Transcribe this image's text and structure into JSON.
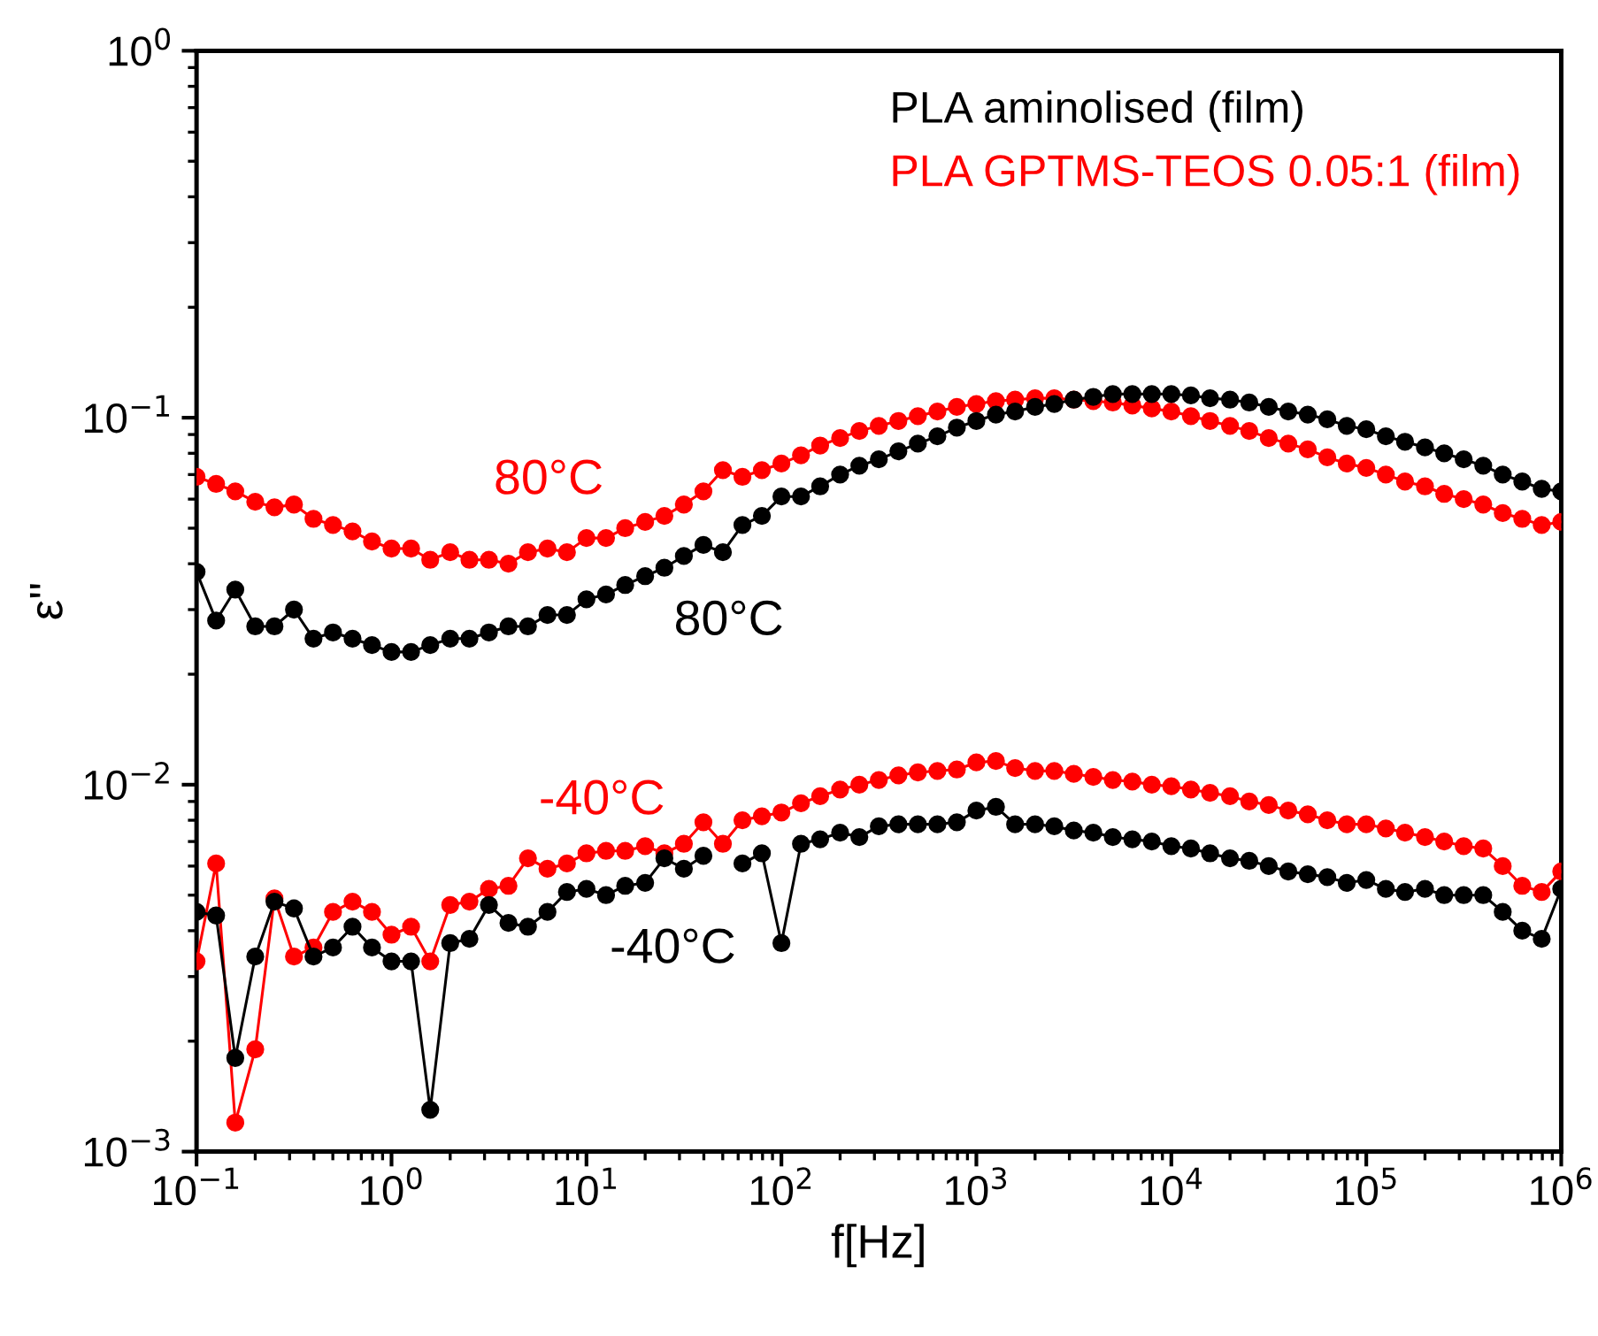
{
  "chart_data": {
    "type": "line",
    "xlabel": "f[Hz]",
    "ylabel": "ε''",
    "log": "xy",
    "marker": "circle",
    "line_style": "solid",
    "grid": false,
    "legend": "top right",
    "xlim": [
      0.1,
      1000000
    ],
    "ylim": [
      0.001,
      1
    ],
    "xticks": [
      {
        "value": 0.1,
        "label": "10$^{−1}$"
      },
      {
        "value": 1,
        "label": "10$^{0}$"
      },
      {
        "value": 10,
        "label": "10$^{1}$"
      },
      {
        "value": 100,
        "label": "10$^{2}$"
      },
      {
        "value": 1000,
        "label": "10$^{3}$"
      },
      {
        "value": 10000,
        "label": "10$^{4}$"
      },
      {
        "value": 100000,
        "label": "10$^{5}$"
      },
      {
        "value": 1000000,
        "label": "10$^{6}$"
      }
    ],
    "yticks": [
      {
        "value": 0.001,
        "label": "10$^{−3}$"
      },
      {
        "value": 0.01,
        "label": "10$^{−2}$"
      },
      {
        "value": 0.1,
        "label": "10$^{−1}$"
      },
      {
        "value": 1,
        "label": "10$^{0}$"
      }
    ],
    "x": [
      0.1,
      0.126,
      0.158,
      0.2,
      0.251,
      0.316,
      0.398,
      0.501,
      0.631,
      0.794,
      1,
      1.26,
      1.58,
      2,
      2.51,
      3.16,
      3.98,
      5.01,
      6.31,
      7.94,
      10,
      12.6,
      15.8,
      20,
      25.1,
      31.6,
      39.8,
      50.1,
      63.1,
      79.4,
      100,
      126,
      158,
      200,
      251,
      316,
      398,
      501,
      631,
      794,
      1000,
      1260,
      1580,
      2000,
      2510,
      3160,
      3980,
      5010,
      6310,
      7940,
      10000,
      12600,
      15800,
      20000,
      25100,
      31600,
      39800,
      50100,
      63100,
      79400,
      100000,
      126000,
      158000,
      200000,
      251000,
      316000,
      398000,
      501000,
      631000,
      794000,
      1000000
    ],
    "series": [
      {
        "name": "PLA aminolised (film)",
        "color": "#000000",
        "values": [
          0.038,
          0.028,
          0.034,
          0.027,
          0.027,
          0.03,
          0.025,
          0.026,
          0.025,
          0.024,
          0.023,
          0.023,
          0.024,
          0.025,
          0.025,
          0.026,
          0.027,
          0.027,
          0.029,
          0.029,
          0.032,
          0.033,
          0.035,
          0.037,
          0.039,
          0.042,
          0.045,
          0.043,
          0.051,
          0.054,
          0.061,
          0.061,
          0.065,
          0.07,
          0.074,
          0.077,
          0.081,
          0.085,
          0.089,
          0.094,
          0.098,
          0.102,
          0.104,
          0.107,
          0.109,
          0.112,
          0.114,
          0.116,
          0.116,
          0.116,
          0.116,
          0.115,
          0.113,
          0.112,
          0.11,
          0.107,
          0.104,
          0.102,
          0.099,
          0.095,
          0.093,
          0.089,
          0.086,
          0.083,
          0.08,
          0.077,
          0.074,
          0.07,
          0.067,
          0.064,
          0.063
        ]
      },
      {
        "name": "PLA GPTMS-TEOS 0.05:1 (film)",
        "color": "#ff0000",
        "values": [
          0.069,
          0.066,
          0.063,
          0.059,
          0.057,
          0.058,
          0.053,
          0.051,
          0.049,
          0.046,
          0.044,
          0.044,
          0.041,
          0.043,
          0.041,
          0.041,
          0.04,
          0.043,
          0.044,
          0.043,
          0.047,
          0.047,
          0.05,
          0.052,
          0.054,
          0.058,
          0.063,
          0.072,
          0.069,
          0.072,
          0.075,
          0.079,
          0.084,
          0.088,
          0.092,
          0.095,
          0.098,
          0.101,
          0.104,
          0.107,
          0.109,
          0.111,
          0.112,
          0.113,
          0.113,
          0.112,
          0.111,
          0.11,
          0.108,
          0.106,
          0.104,
          0.101,
          0.098,
          0.095,
          0.092,
          0.088,
          0.085,
          0.082,
          0.078,
          0.075,
          0.073,
          0.07,
          0.067,
          0.065,
          0.062,
          0.06,
          0.058,
          0.055,
          0.053,
          0.051,
          0.052
        ]
      },
      {
        "color": "#000000",
        "values": [
          0.0045,
          0.0044,
          0.0018,
          0.0034,
          0.0048,
          0.0046,
          0.0034,
          0.0036,
          0.0041,
          0.0036,
          0.0033,
          0.0033,
          0.0013,
          0.0037,
          0.0038,
          0.0047,
          0.0042,
          0.0041,
          0.0045,
          0.0051,
          0.0052,
          0.005,
          0.0053,
          0.0054,
          0.0063,
          0.0059,
          0.0064,
          null,
          0.0061,
          0.0065,
          0.0037,
          0.0069,
          0.0071,
          0.0074,
          0.0072,
          0.0077,
          0.0078,
          0.0078,
          0.0078,
          0.0079,
          0.0085,
          0.0087,
          0.0078,
          0.0078,
          0.0077,
          0.0075,
          0.0074,
          0.0072,
          0.0071,
          0.007,
          0.0068,
          0.0067,
          0.0065,
          0.0063,
          0.0062,
          0.006,
          0.0058,
          0.0057,
          0.0056,
          0.0054,
          0.0055,
          0.0052,
          0.0051,
          0.0052,
          0.005,
          0.005,
          0.005,
          0.0045,
          0.004,
          0.0038,
          0.0052
        ]
      },
      {
        "color": "#ff0000",
        "values": [
          0.0033,
          0.0061,
          0.0012,
          0.0019,
          0.0049,
          0.0034,
          0.0036,
          0.0045,
          0.0048,
          0.0045,
          0.0039,
          0.0041,
          0.0033,
          0.0047,
          0.0048,
          0.0052,
          0.0053,
          0.0063,
          0.0059,
          0.0061,
          0.0065,
          0.0066,
          0.0066,
          0.0068,
          0.0065,
          0.0069,
          0.0079,
          0.0069,
          0.008,
          0.0082,
          0.0084,
          0.0089,
          0.0093,
          0.0097,
          0.01,
          0.0103,
          0.0106,
          0.0108,
          0.0109,
          0.011,
          0.0115,
          0.0116,
          0.0111,
          0.0109,
          0.0109,
          0.0107,
          0.0105,
          0.0103,
          0.0102,
          0.01,
          0.0099,
          0.0097,
          0.0095,
          0.0093,
          0.009,
          0.0088,
          0.0085,
          0.0083,
          0.008,
          0.0078,
          0.0078,
          0.0076,
          0.0074,
          0.0072,
          0.007,
          0.0068,
          0.0067,
          0.006,
          0.0053,
          0.0051,
          0.0058
        ]
      }
    ],
    "annotations": [
      "80°C",
      "80°C",
      "-40°C",
      "-40°C"
    ]
  }
}
